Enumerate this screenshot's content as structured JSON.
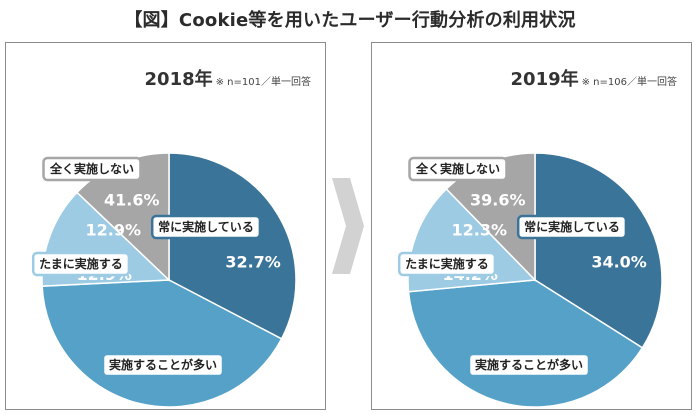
{
  "page": {
    "title": "【図】Cookie等を用いたユーザー行動分析の利用状況"
  },
  "panels": [
    {
      "year": "2018年",
      "note": "※ n=101／単一回答"
    },
    {
      "year": "2019年",
      "note": "※ n=106／単一回答"
    }
  ],
  "chart_data": [
    {
      "type": "pie",
      "title": "2018年",
      "subtitle": "※ n=101／単一回答",
      "categories": [
        "常に実施している",
        "実施することが多い",
        "たまに実施する",
        "全く実施しない"
      ],
      "values": [
        32.7,
        41.6,
        12.9,
        12.9
      ],
      "value_labels": [
        "32.7%",
        "41.6%",
        "12.9%",
        "12.9%"
      ],
      "colors": [
        "#3a7499",
        "#55a1c8",
        "#9ccbe3",
        "#a6a6a6"
      ],
      "start_angle": "12 o'clock",
      "direction": "clockwise"
    },
    {
      "type": "pie",
      "title": "2019年",
      "subtitle": "※ n=106／単一回答",
      "categories": [
        "常に実施している",
        "実施することが多い",
        "たまに実施する",
        "全く実施しない"
      ],
      "values": [
        34.0,
        39.6,
        14.2,
        12.3
      ],
      "value_labels": [
        "34.0%",
        "39.6%",
        "14.2%",
        "12.3%"
      ],
      "colors": [
        "#3a7499",
        "#55a1c8",
        "#9ccbe3",
        "#a6a6a6"
      ],
      "start_angle": "12 o'clock",
      "direction": "clockwise"
    }
  ]
}
